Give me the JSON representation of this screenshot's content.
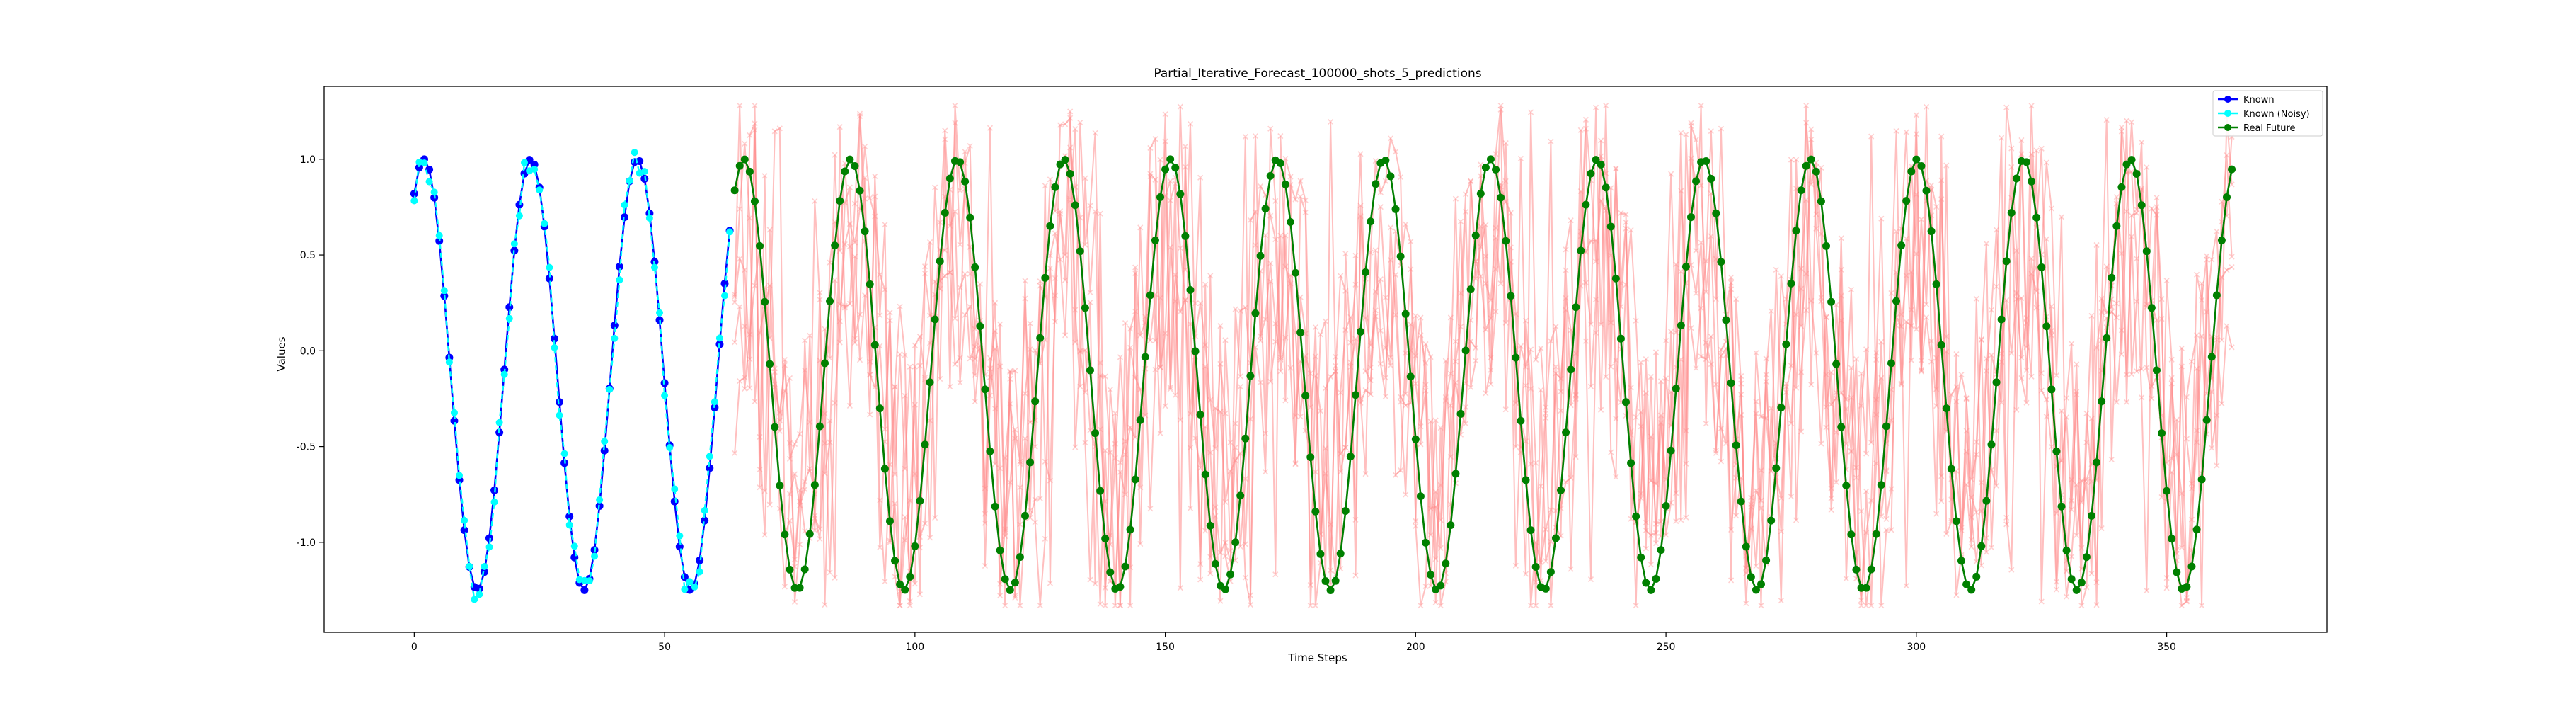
{
  "chart_data": {
    "type": "line",
    "title": "Partial_Iterative_Forecast_100000_shots_5_predictions",
    "xlabel": "Time Steps",
    "ylabel": "Values",
    "xlim": [
      -18,
      382
    ],
    "ylim": [
      -1.47,
      1.38
    ],
    "x_ticks": [
      0,
      50,
      100,
      150,
      200,
      250,
      300,
      350
    ],
    "y_ticks": [
      -1.0,
      -0.5,
      0.0,
      0.5,
      1.0
    ],
    "grid": false,
    "legend_position": "top-right",
    "legend": [
      {
        "label": "Known",
        "color": "#0000ff",
        "marker": "circle"
      },
      {
        "label": "Known (Noisy)",
        "color": "#00ffff",
        "marker": "circle"
      },
      {
        "label": "Real Future",
        "color": "#008000",
        "marker": "circle"
      }
    ],
    "series": [
      {
        "name": "Known",
        "color": "#0000ff",
        "style": "solid-line-circle-markers",
        "x_start": 0,
        "x_end": 63,
        "period": 21.3,
        "phase_start": 0.82,
        "amplitude_description": "oscillates between about -1.25 and 1.0"
      },
      {
        "name": "Known (Noisy)",
        "color": "#00ffff",
        "style": "dashed-line-circle-markers",
        "x_start": 0,
        "x_end": 63
      },
      {
        "name": "Real Future",
        "color": "#008000",
        "style": "solid-line-circle-markers",
        "x_start": 64,
        "x_end": 363
      },
      {
        "name": "",
        "color": "#ff8a8a",
        "style": "translucent-line-x-markers",
        "x_start": 64,
        "x_end": 363,
        "count": 5,
        "y_range": [
          -1.33,
          1.28
        ]
      }
    ]
  }
}
